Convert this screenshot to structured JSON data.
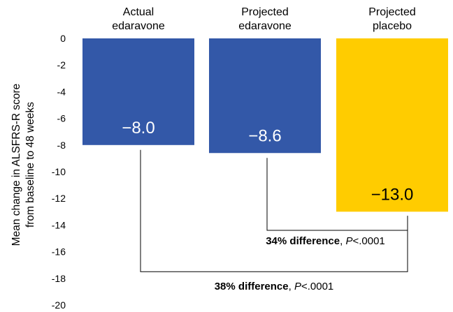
{
  "chart_data": {
    "type": "bar",
    "categories": [
      [
        "Actual",
        "edaravone"
      ],
      [
        "Projected",
        "edaravone"
      ],
      [
        "Projected",
        "placebo"
      ]
    ],
    "values": [
      -8.0,
      -8.6,
      -13.0
    ],
    "data_labels": [
      "−8.0",
      "−8.6",
      "−13.0"
    ],
    "colors": [
      "#3358A8",
      "#3358A8",
      "#FFCC00"
    ],
    "label_colors": [
      "#ffffff",
      "#ffffff",
      "#000000"
    ],
    "ylabel": [
      "Mean change in ALSFRS-R score",
      "from baseline to 48 weeks"
    ],
    "ylim": [
      -20,
      0
    ],
    "yticks": [
      0,
      -2,
      -4,
      -6,
      -8,
      -10,
      -12,
      -14,
      -16,
      -18,
      -20
    ],
    "grid": false,
    "comparisons": [
      {
        "from": 1,
        "to": 2,
        "y": -14.4,
        "bold": "34% difference",
        "sep": ", ",
        "italic": "P",
        "rest": "<.0001"
      },
      {
        "from": 0,
        "to": 2,
        "y": -17.5,
        "bold": "38% difference",
        "sep": ", ",
        "italic": "P",
        "rest": "<.0001"
      }
    ]
  }
}
